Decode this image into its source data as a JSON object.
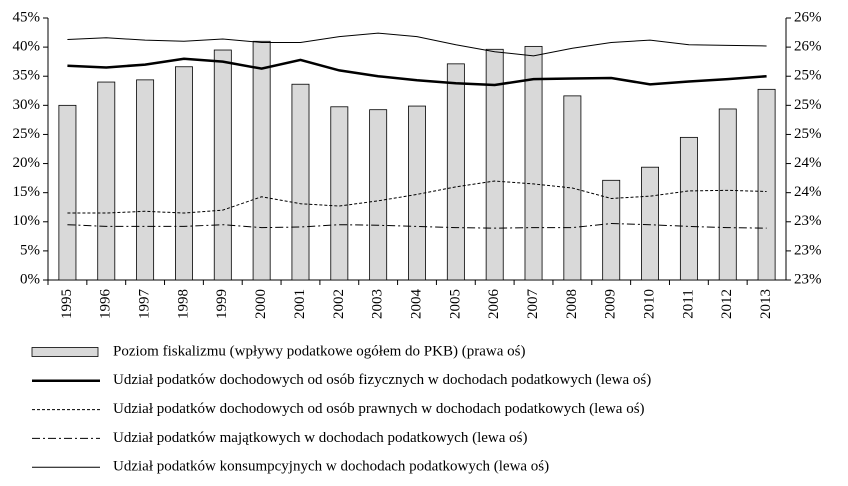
{
  "chart_data": {
    "type": "bar-line",
    "categories": [
      "1995",
      "1996",
      "1997",
      "1998",
      "1999",
      "2000",
      "2001",
      "2002",
      "2003",
      "2004",
      "2005",
      "2006",
      "2007",
      "2008",
      "2009",
      "2010",
      "2011",
      "2012",
      "2013"
    ],
    "series": [
      {
        "name": "Poziom fiskalizmu (wpływy podatkowe ogółem do PKB) (prawa oś)",
        "type": "bar",
        "axis": "y2",
        "color": "#d9d9d9",
        "values": [
          24.9,
          25.22,
          25.25,
          25.43,
          25.66,
          25.78,
          25.19,
          24.88,
          24.84,
          24.89,
          25.47,
          25.67,
          25.71,
          25.03,
          23.87,
          24.05,
          24.46,
          24.85,
          25.12
        ]
      },
      {
        "name": "Udział podatków dochodowych od osób fizycznych w dochodach podatkowych (lewa oś)",
        "type": "line",
        "color": "#000000",
        "dash": "solid",
        "width": 2.5,
        "values": [
          36.8,
          36.5,
          37,
          38,
          37.5,
          36.3,
          37.8,
          36,
          35,
          34.3,
          33.8,
          33.5,
          34.5,
          34.6,
          34.7,
          33.6,
          34.1,
          34.5,
          35
        ]
      },
      {
        "name": "Udział podatków dochodowych od osób prawnych w dochodach podatkowych (lewa oś)",
        "type": "line",
        "color": "#000000",
        "dash": "dotted",
        "width": 1,
        "values": [
          11.5,
          11.5,
          11.8,
          11.5,
          12,
          14.3,
          13.1,
          12.7,
          13.6,
          14.7,
          16,
          17,
          16.5,
          15.8,
          14,
          14.4,
          15.3,
          15.4,
          15.2
        ]
      },
      {
        "name": "Udział podatków majątkowych w dochodach podatkowych (lewa oś)",
        "type": "line",
        "color": "#000000",
        "dash": "dashdot",
        "width": 1,
        "values": [
          9.5,
          9.2,
          9.2,
          9.2,
          9.5,
          9,
          9.1,
          9.5,
          9.4,
          9.2,
          9,
          8.9,
          9,
          9,
          9.7,
          9.5,
          9.2,
          9,
          8.9
        ]
      },
      {
        "name": "Udział podatków konsumpcyjnych w dochodach podatkowych (lewa oś)",
        "type": "line",
        "color": "#000000",
        "dash": "solid",
        "width": 1,
        "values": [
          41.3,
          41.6,
          41.2,
          41,
          41.4,
          40.8,
          40.8,
          41.8,
          42.4,
          41.8,
          40.4,
          39.2,
          38.5,
          39.8,
          40.8,
          41.2,
          40.4,
          40.3,
          40.2
        ]
      }
    ],
    "ylim": [
      0,
      45
    ],
    "yticks": [
      {
        "value": 0,
        "label": "0%"
      },
      {
        "value": 5,
        "label": "5%"
      },
      {
        "value": 10,
        "label": "10%"
      },
      {
        "value": 15,
        "label": "15%"
      },
      {
        "value": 20,
        "label": "20%"
      },
      {
        "value": 25,
        "label": "25%"
      },
      {
        "value": 30,
        "label": "30%"
      },
      {
        "value": 35,
        "label": "35%"
      },
      {
        "value": 40,
        "label": "40%"
      },
      {
        "value": 45,
        "label": "45%"
      }
    ],
    "y2lim": [
      22.5,
      26.1
    ],
    "y2ticks": [
      {
        "value": 22.5,
        "label": "23%"
      },
      {
        "value": 22.9,
        "label": "23%"
      },
      {
        "value": 23.3,
        "label": "23%"
      },
      {
        "value": 23.7,
        "label": "24%"
      },
      {
        "value": 24.1,
        "label": "24%"
      },
      {
        "value": 24.5,
        "label": "25%"
      },
      {
        "value": 24.9,
        "label": "25%"
      },
      {
        "value": 25.3,
        "label": "25%"
      },
      {
        "value": 25.7,
        "label": "26%"
      },
      {
        "value": 26.1,
        "label": "26%"
      }
    ],
    "legend": "bottom",
    "grid": false
  }
}
